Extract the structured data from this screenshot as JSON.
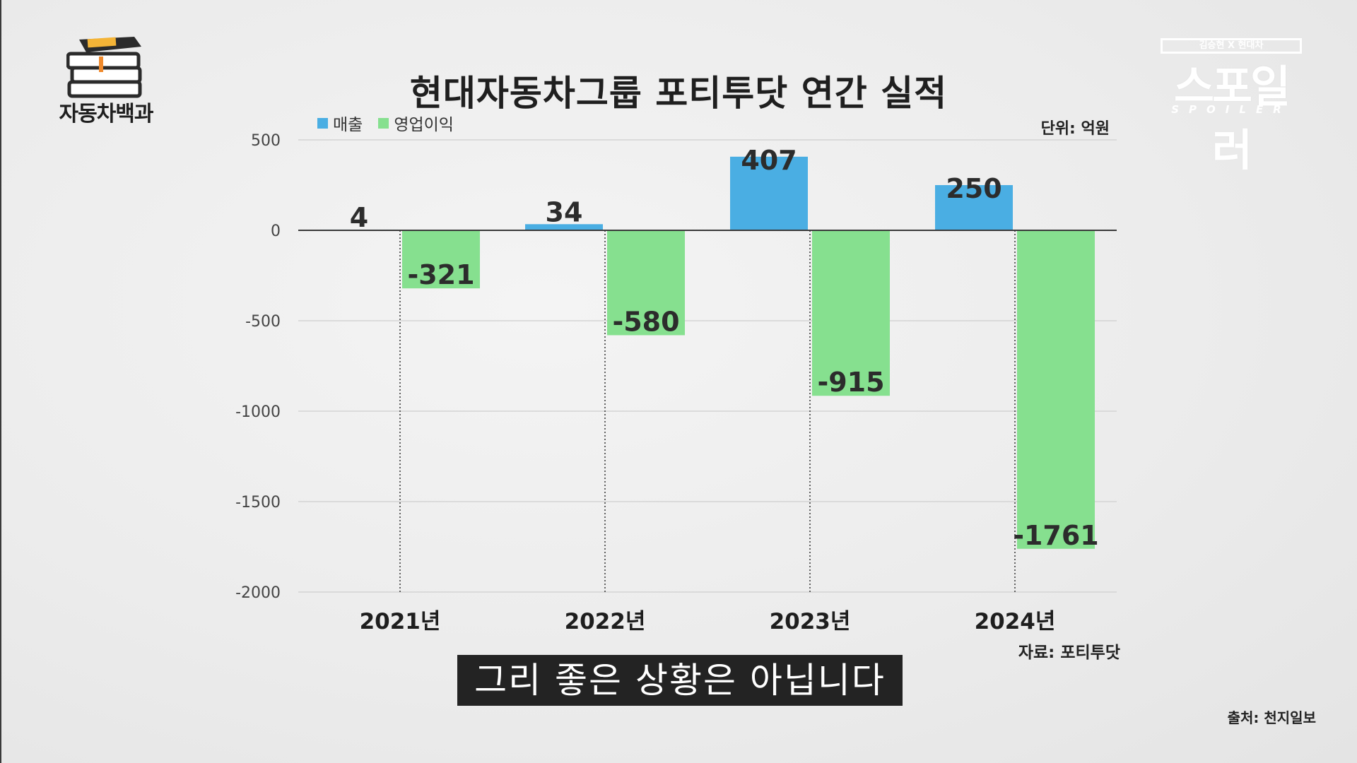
{
  "logo": {
    "text": "자동차백과",
    "book_label": "자동차백과"
  },
  "title": "현대자동차그룹 포티투닷 연간 실적",
  "spoiler": {
    "bar_text": "김승현 X 현대차",
    "main_text": "스포일러",
    "sub_text": "SPOILER"
  },
  "legend": [
    {
      "name": "매출",
      "color": "#4aaee3"
    },
    {
      "name": "영업이익",
      "color": "#86e08f"
    }
  ],
  "unit_label": "단위: 억원",
  "source_label": "자료: 포티투닷",
  "subtitle": "그리 좋은 상황은 아닙니다",
  "credit": "출처: 천지일보",
  "chart_data": {
    "type": "bar",
    "title": "현대자동차그룹 포티투닷 연간 실적",
    "categories": [
      "2021년",
      "2022년",
      "2023년",
      "2024년"
    ],
    "series": [
      {
        "name": "매출",
        "color": "#4aaee3",
        "values": [
          4,
          34,
          407,
          250
        ]
      },
      {
        "name": "영업이익",
        "color": "#86e08f",
        "values": [
          -321,
          -580,
          -915,
          -1761
        ]
      }
    ],
    "data_labels": [
      [
        "4",
        "34",
        "407",
        "250"
      ],
      [
        "-321",
        "-580",
        "-915",
        "-1761"
      ]
    ],
    "yticks": [
      500,
      0,
      -500,
      -1000,
      -1500,
      -2000
    ],
    "ytick_labels": [
      "500",
      "0",
      "-500",
      "-1000",
      "-1500",
      "-2000"
    ],
    "ylim": [
      -2000,
      500
    ],
    "xlabel": "",
    "ylabel": "",
    "legend_position": "top-left",
    "grid": true
  }
}
